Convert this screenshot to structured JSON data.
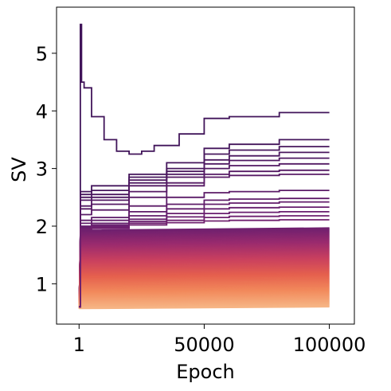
{
  "chart_data": {
    "type": "line",
    "title": "",
    "xlabel": "Epoch",
    "ylabel": "SV",
    "xlim": [
      -9000,
      110000
    ],
    "ylim": [
      0.3,
      5.8
    ],
    "xticks": [
      {
        "value": 1,
        "label": "1"
      },
      {
        "value": 50000,
        "label": "50000"
      },
      {
        "value": 100000,
        "label": "100000"
      }
    ],
    "yticks": [
      {
        "value": 1,
        "label": "1"
      },
      {
        "value": 2,
        "label": "2"
      },
      {
        "value": 3,
        "label": "3"
      },
      {
        "value": 4,
        "label": "4"
      },
      {
        "value": 5,
        "label": "5"
      }
    ],
    "grid": false,
    "legend": "none",
    "colormap": "magma-like (dark purple for largest singular values, peach for smallest)",
    "colormap_colors": [
      "#3b1457",
      "#6a1f6f",
      "#9a2b6e",
      "#c9405f",
      "#e5604e",
      "#f28a5c",
      "#f6b585"
    ],
    "line_count_approx": 200,
    "series_highlighted": [
      {
        "epochs": [
          1,
          500,
          1000,
          2000,
          5000,
          10000,
          15000,
          20000,
          25000,
          30000,
          40000,
          50000,
          60000,
          80000,
          100000
        ],
        "values": [
          0.6,
          5.5,
          4.5,
          4.4,
          3.9,
          3.5,
          3.3,
          3.25,
          3.3,
          3.4,
          3.6,
          3.87,
          3.9,
          3.97,
          3.97
        ]
      },
      {
        "epochs": [
          1,
          500,
          5000,
          20000,
          35000,
          50000,
          60000,
          80000,
          100000
        ],
        "values": [
          0.6,
          2.6,
          2.7,
          2.9,
          3.1,
          3.35,
          3.42,
          3.5,
          3.5
        ]
      },
      {
        "epochs": [
          1,
          500,
          5000,
          20000,
          35000,
          50000,
          60000,
          80000,
          100000
        ],
        "values": [
          0.6,
          2.55,
          2.62,
          2.85,
          3.0,
          3.25,
          3.32,
          3.38,
          3.38
        ]
      },
      {
        "epochs": [
          1,
          500,
          5000,
          20000,
          35000,
          50000,
          60000,
          80000,
          100000
        ],
        "values": [
          0.6,
          2.5,
          2.55,
          2.8,
          2.95,
          3.15,
          3.22,
          3.28,
          3.28
        ]
      },
      {
        "epochs": [
          1,
          500,
          5000,
          20000,
          35000,
          50000,
          60000,
          80000,
          100000
        ],
        "values": [
          0.6,
          2.45,
          2.5,
          2.75,
          2.9,
          3.08,
          3.14,
          3.18,
          3.18
        ]
      },
      {
        "epochs": [
          1,
          500,
          5000,
          20000,
          35000,
          50000,
          60000,
          80000,
          100000
        ],
        "values": [
          0.6,
          2.35,
          2.45,
          2.7,
          2.85,
          3.0,
          3.05,
          3.08,
          3.08
        ]
      },
      {
        "epochs": [
          1,
          500,
          5000,
          20000,
          35000,
          50000,
          60000,
          80000,
          100000
        ],
        "values": [
          0.6,
          2.3,
          2.38,
          2.6,
          2.75,
          2.9,
          2.95,
          2.97,
          2.97
        ]
      },
      {
        "epochs": [
          1,
          500,
          5000,
          20000,
          35000,
          50000,
          60000,
          80000,
          100000
        ],
        "values": [
          0.6,
          2.2,
          2.28,
          2.5,
          2.7,
          2.85,
          2.88,
          2.9,
          2.9
        ]
      },
      {
        "epochs": [
          1,
          500,
          5000,
          20000,
          35000,
          50000,
          60000,
          80000,
          100000
        ],
        "values": [
          0.6,
          2.1,
          2.15,
          2.35,
          2.5,
          2.58,
          2.6,
          2.62,
          2.62
        ]
      },
      {
        "epochs": [
          1,
          500,
          5000,
          20000,
          35000,
          50000,
          60000,
          80000,
          100000
        ],
        "values": [
          0.6,
          2.05,
          2.1,
          2.25,
          2.38,
          2.45,
          2.47,
          2.48,
          2.48
        ]
      },
      {
        "epochs": [
          1,
          500,
          5000,
          20000,
          35000,
          50000,
          60000,
          80000,
          100000
        ],
        "values": [
          0.6,
          2.0,
          2.05,
          2.18,
          2.3,
          2.38,
          2.4,
          2.42,
          2.42
        ]
      },
      {
        "epochs": [
          1,
          500,
          5000,
          20000,
          35000,
          50000,
          60000,
          80000,
          100000
        ],
        "values": [
          0.6,
          1.98,
          2.02,
          2.12,
          2.22,
          2.3,
          2.32,
          2.33,
          2.33
        ]
      },
      {
        "epochs": [
          1,
          500,
          5000,
          20000,
          35000,
          50000,
          60000,
          80000,
          100000
        ],
        "values": [
          0.6,
          1.96,
          2.0,
          2.08,
          2.16,
          2.22,
          2.24,
          2.25,
          2.25
        ]
      },
      {
        "epochs": [
          1,
          500,
          5000,
          20000,
          35000,
          50000,
          60000,
          80000,
          100000
        ],
        "values": [
          0.6,
          1.95,
          1.98,
          2.05,
          2.1,
          2.15,
          2.17,
          2.18,
          2.18
        ]
      },
      {
        "epochs": [
          1,
          500,
          5000,
          20000,
          35000,
          50000,
          60000,
          80000,
          100000
        ],
        "values": [
          0.6,
          1.94,
          1.96,
          2.02,
          2.06,
          2.09,
          2.1,
          2.11,
          2.11
        ]
      }
    ],
    "band": {
      "start_epoch": 500,
      "end_epoch": 100000,
      "upper_start": 1.93,
      "upper_end": 1.97,
      "lower_start": 0.57,
      "lower_end": 0.6
    }
  }
}
